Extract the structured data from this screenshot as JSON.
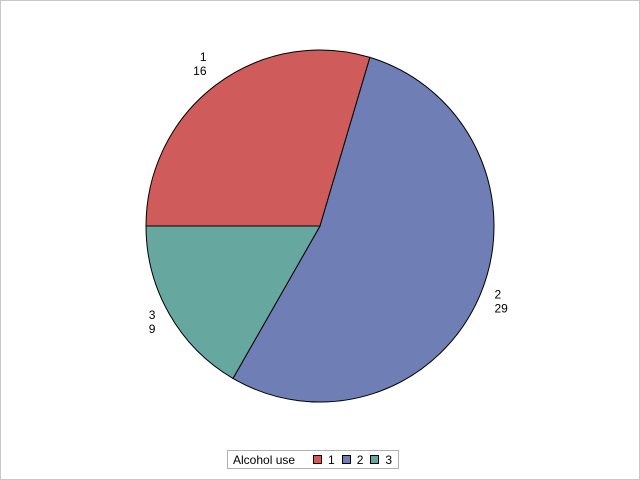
{
  "chart_data": {
    "type": "pie",
    "title": "",
    "legend": {
      "title": "Alcohol use",
      "placement": "bottom-center"
    },
    "slices": [
      {
        "category": "1",
        "label": "1",
        "value": 16,
        "value_label": "16",
        "color": "#d05b5b"
      },
      {
        "category": "2",
        "label": "2",
        "value": 29,
        "value_label": "29",
        "color": "#6f7eb4"
      },
      {
        "category": "3",
        "label": "3",
        "value": 9,
        "value_label": "9",
        "color": "#66a8a0"
      }
    ],
    "total": 54
  }
}
